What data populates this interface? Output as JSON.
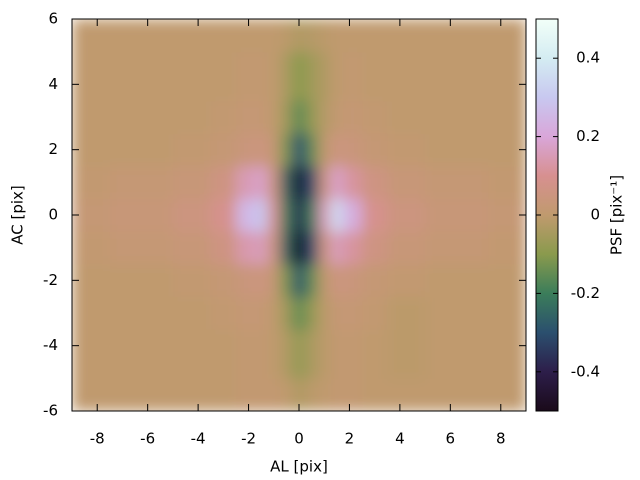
{
  "chart_data": {
    "type": "heatmap",
    "x_label": "AL [pix]",
    "y_label": "AC [pix]",
    "colorbar_label": "PSF [pix⁻¹]",
    "x": [
      -9,
      -6,
      -4,
      -3,
      -2,
      -1.5,
      -1,
      -0.5,
      0,
      0.5,
      1,
      1.5,
      2,
      3,
      4,
      6,
      9
    ],
    "y": [
      -6,
      -4,
      -3,
      -2,
      -1,
      0,
      1,
      2,
      3,
      4,
      6
    ],
    "z": [
      [
        0,
        0,
        0,
        0,
        0.01,
        0.01,
        0.01,
        0,
        -0.03,
        -0.01,
        0,
        0.01,
        0.01,
        0,
        0,
        0,
        0
      ],
      [
        0,
        0,
        0,
        0,
        0.01,
        0.01,
        0,
        -0.03,
        -0.08,
        -0.04,
        -0.01,
        0.01,
        0.01,
        0,
        -0.01,
        0,
        0
      ],
      [
        0,
        0,
        0,
        0.01,
        0.02,
        0.02,
        0,
        -0.06,
        -0.15,
        -0.08,
        -0.01,
        0.02,
        0.02,
        0.01,
        -0.01,
        0,
        0
      ],
      [
        0,
        0,
        0.01,
        0.02,
        0.04,
        0.05,
        0.02,
        -0.12,
        -0.28,
        -0.15,
        0,
        0.05,
        0.04,
        0.02,
        0.01,
        0,
        0
      ],
      [
        0.01,
        0.02,
        0.03,
        0.06,
        0.14,
        0.16,
        0.05,
        -0.25,
        -0.5,
        -0.3,
        0.05,
        0.16,
        0.12,
        0.06,
        0.03,
        0.02,
        0.01
      ],
      [
        0.02,
        0.03,
        0.05,
        0.09,
        0.25,
        0.3,
        0.1,
        -0.2,
        -0.38,
        -0.2,
        0.15,
        0.35,
        0.22,
        0.09,
        0.05,
        0.03,
        0.02
      ],
      [
        0.01,
        0.02,
        0.03,
        0.06,
        0.15,
        0.18,
        0.05,
        -0.25,
        -0.45,
        -0.3,
        0.05,
        0.18,
        0.12,
        0.06,
        0.03,
        0.02,
        0.01
      ],
      [
        0,
        0,
        0.01,
        0.02,
        0.04,
        0.05,
        0.02,
        -0.12,
        -0.3,
        -0.15,
        0,
        0.05,
        0.04,
        0.02,
        0.01,
        0,
        0
      ],
      [
        0,
        0,
        0,
        0.01,
        0.02,
        0.02,
        0,
        -0.06,
        -0.16,
        -0.08,
        -0.02,
        0.01,
        0.02,
        0.01,
        0,
        0,
        0
      ],
      [
        0,
        0,
        0,
        0,
        0.01,
        0.01,
        0,
        -0.04,
        -0.1,
        -0.06,
        -0.03,
        0,
        0.01,
        0,
        0,
        0,
        0
      ],
      [
        0,
        0,
        0,
        0,
        0,
        0,
        0,
        -0.01,
        -0.03,
        -0.02,
        -0.01,
        0,
        0,
        0,
        0,
        0,
        0
      ]
    ],
    "xlim": [
      -9,
      9
    ],
    "xticks": [
      -8,
      -6,
      -4,
      -2,
      0,
      2,
      4,
      6,
      8
    ],
    "ylim": [
      -6,
      6
    ],
    "yticks": [
      -6,
      -4,
      -2,
      0,
      2,
      4,
      6
    ],
    "zlim": [
      -0.5,
      0.5
    ],
    "zticks": [
      -0.4,
      -0.2,
      0,
      0.2,
      0.4
    ],
    "colormap": [
      "#1a0a1a",
      "#2d1e4a",
      "#2b4f6e",
      "#3b7d5a",
      "#8a9a4d",
      "#c09a6e",
      "#d79090",
      "#d9a6d9",
      "#c8c8f0",
      "#d4ecf2",
      "#f2fff8"
    ]
  }
}
